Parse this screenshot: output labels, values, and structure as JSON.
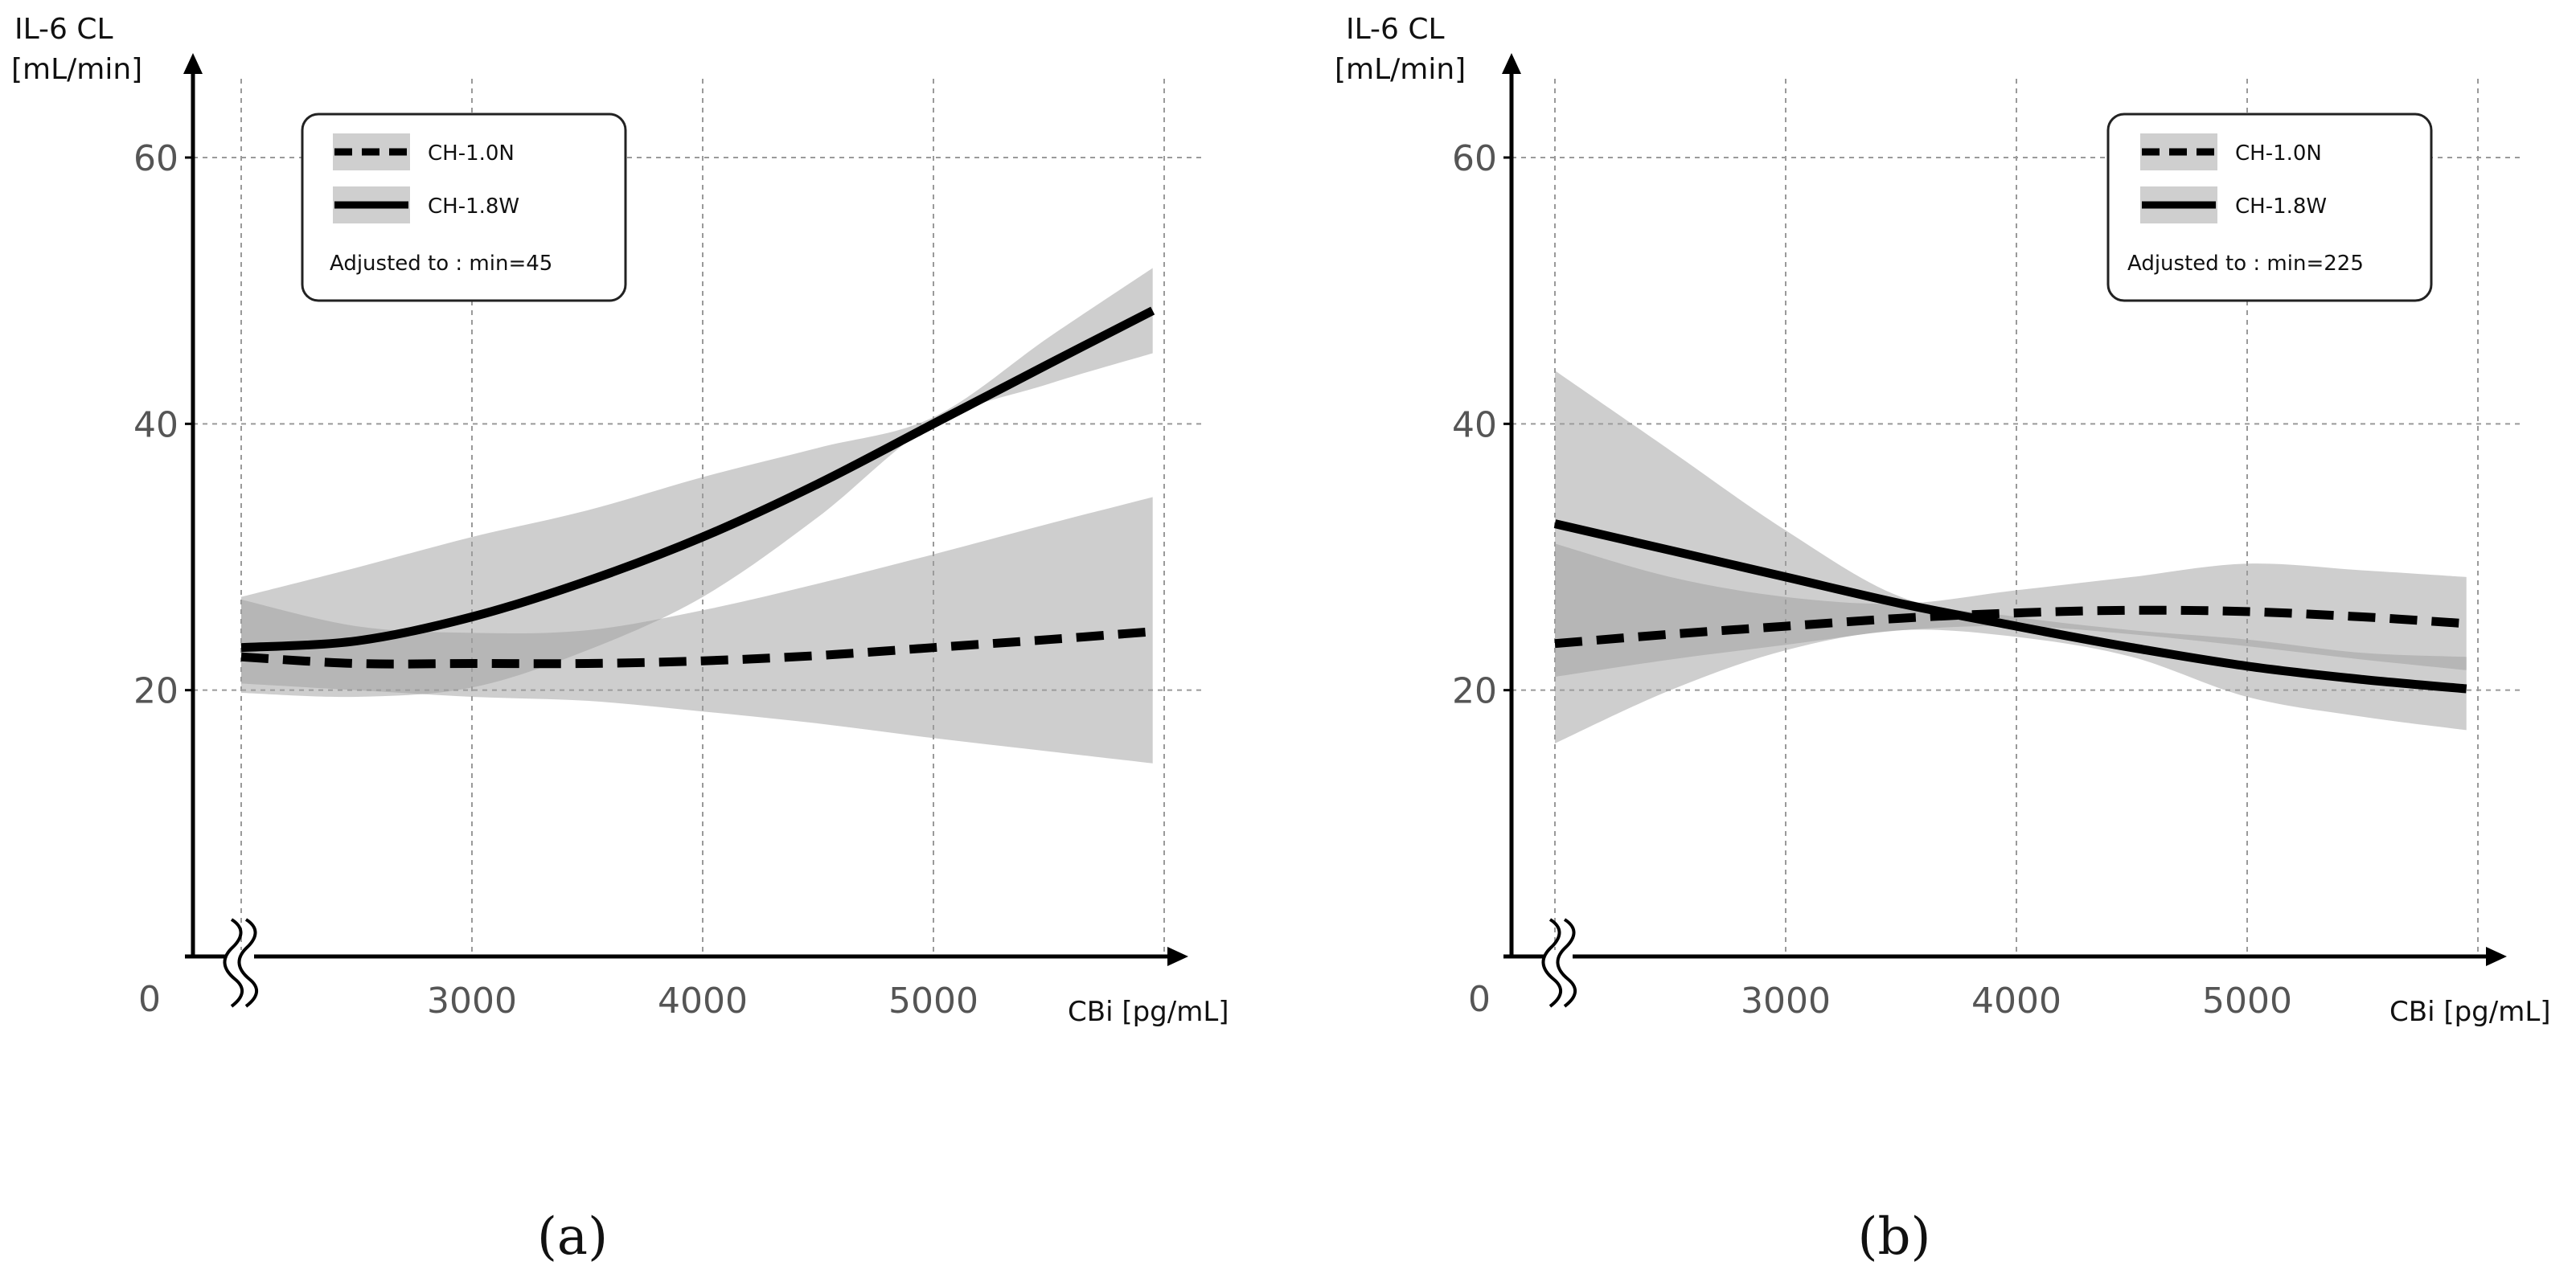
{
  "chart_data": [
    {
      "type": "line",
      "panel_label": "(a)",
      "ylabel_line1": "IL-6 CL",
      "ylabel_line2": "[mL/min]",
      "xlabel": "CBi [pg/mL]",
      "origin_label": "0",
      "x_ticks": [
        3000,
        4000,
        5000
      ],
      "y_ticks": [
        20,
        40,
        60
      ],
      "xlim": [
        1800,
        6200
      ],
      "ylim": [
        0,
        65
      ],
      "axis_break": true,
      "legend": {
        "position": "top-left",
        "entries": [
          {
            "name": "CH-1.0N",
            "style": "dashed"
          },
          {
            "name": "CH-1.8W",
            "style": "solid"
          }
        ],
        "note": "Adjusted to : min=45"
      },
      "series": [
        {
          "name": "CH-1.0N",
          "style": "dashed",
          "x": [
            2000,
            2500,
            3000,
            3500,
            4000,
            4500,
            5000,
            5500,
            5950
          ],
          "y": [
            22.5,
            22.0,
            22.0,
            22.0,
            22.2,
            22.6,
            23.2,
            23.8,
            24.4
          ],
          "ci_lower": [
            20.5,
            20.0,
            19.5,
            19.2,
            18.4,
            17.5,
            16.4,
            15.4,
            14.5
          ],
          "ci_upper": [
            26.8,
            24.8,
            24.3,
            24.5,
            26.0,
            28.0,
            30.2,
            32.5,
            34.5
          ]
        },
        {
          "name": "CH-1.8W",
          "style": "solid",
          "x": [
            2000,
            2500,
            3000,
            3500,
            4000,
            4500,
            5000,
            5500,
            5950
          ],
          "y": [
            23.2,
            23.7,
            25.5,
            28.2,
            31.5,
            35.5,
            40.0,
            44.5,
            48.5
          ],
          "ci_lower": [
            19.8,
            19.5,
            20.2,
            23.0,
            27.0,
            33.0,
            40.0,
            43.0,
            45.3
          ],
          "ci_upper": [
            27.0,
            29.2,
            31.5,
            33.5,
            36.0,
            38.2,
            40.5,
            46.5,
            51.7
          ]
        }
      ]
    },
    {
      "type": "line",
      "panel_label": "(b)",
      "ylabel_line1": "IL-6 CL",
      "ylabel_line2": "[mL/min]",
      "xlabel": "CBi [pg/mL]",
      "origin_label": "0",
      "x_ticks": [
        3000,
        4000,
        5000
      ],
      "y_ticks": [
        20,
        40,
        60
      ],
      "xlim": [
        1800,
        6200
      ],
      "ylim": [
        0,
        65
      ],
      "axis_break": true,
      "legend": {
        "position": "top-right",
        "entries": [
          {
            "name": "CH-1.0N",
            "style": "dashed"
          },
          {
            "name": "CH-1.8W",
            "style": "solid"
          }
        ],
        "note": "Adjusted to : min=225"
      },
      "series": [
        {
          "name": "CH-1.0N",
          "style": "dashed",
          "x": [
            2000,
            2500,
            3000,
            3500,
            4000,
            4500,
            5000,
            5500,
            5950
          ],
          "y": [
            23.5,
            24.2,
            24.8,
            25.4,
            25.8,
            26.0,
            25.9,
            25.5,
            25.0
          ],
          "ci_lower": [
            21.0,
            22.3,
            23.4,
            24.5,
            24.8,
            24.2,
            23.3,
            22.3,
            21.5
          ],
          "ci_upper": [
            31.0,
            28.5,
            27.0,
            26.5,
            27.5,
            28.5,
            29.5,
            29.0,
            28.5
          ]
        },
        {
          "name": "CH-1.8W",
          "style": "solid",
          "x": [
            2000,
            2500,
            3000,
            3500,
            4000,
            4500,
            5000,
            5500,
            5950
          ],
          "y": [
            32.5,
            30.5,
            28.5,
            26.5,
            24.8,
            23.2,
            21.8,
            20.8,
            20.1
          ],
          "ci_lower": [
            16.0,
            20.0,
            23.0,
            24.5,
            24.0,
            22.5,
            19.5,
            18.0,
            17.0
          ],
          "ci_upper": [
            44.0,
            38.0,
            32.0,
            27.0,
            25.5,
            24.5,
            23.8,
            22.8,
            22.5
          ]
        }
      ]
    }
  ]
}
